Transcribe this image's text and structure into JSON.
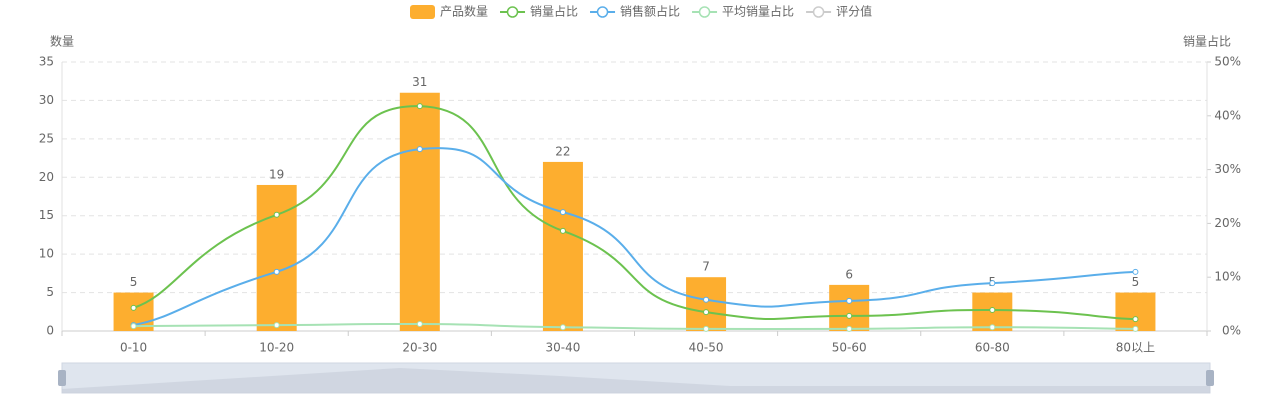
{
  "chart_data": {
    "type": "bar-line",
    "categories": [
      "0-10",
      "10-20",
      "20-30",
      "30-40",
      "40-50",
      "50-60",
      "60-80",
      "80以上"
    ],
    "y_axis_label": "数量",
    "y2_axis_label": "销量占比",
    "ylim": [
      0,
      35
    ],
    "yticks": [
      0,
      5,
      10,
      15,
      20,
      25,
      30,
      35
    ],
    "y2lim": [
      0,
      50
    ],
    "y2ticks": [
      {
        "value": 0,
        "label": "0%"
      },
      {
        "value": 10,
        "label": "10%"
      },
      {
        "value": 20,
        "label": "20%"
      },
      {
        "value": 30,
        "label": "30%"
      },
      {
        "value": 40,
        "label": "40%"
      },
      {
        "value": 50,
        "label": "50%"
      }
    ],
    "grid": true,
    "series": [
      {
        "name": "产品数量",
        "type": "bar",
        "color": "#fdae2f",
        "values": [
          5,
          19,
          31,
          22,
          7,
          6,
          5,
          5
        ],
        "show_labels": true
      },
      {
        "name": "销量占比",
        "type": "line",
        "axis": "y2",
        "color": "#6cc24f",
        "values": [
          4.3,
          21.6,
          41.8,
          18.6,
          3.5,
          2.8,
          3.9,
          2.2
        ]
      },
      {
        "name": "销售额占比",
        "type": "line",
        "axis": "y2",
        "color": "#5aaeea",
        "values": [
          1.1,
          11.0,
          33.8,
          22.1,
          5.8,
          5.6,
          8.9,
          11.0
        ]
      },
      {
        "name": "平均销量占比",
        "type": "line",
        "axis": "y2",
        "color": "#a6e2b4",
        "values": [
          0.9,
          1.1,
          1.3,
          0.7,
          0.4,
          0.4,
          0.7,
          0.4
        ]
      },
      {
        "name": "评分值",
        "type": "line",
        "axis": "y2",
        "color": "#cccccc",
        "visible": false,
        "values": [
          null,
          null,
          null,
          null,
          null,
          null,
          null,
          null
        ]
      }
    ]
  }
}
